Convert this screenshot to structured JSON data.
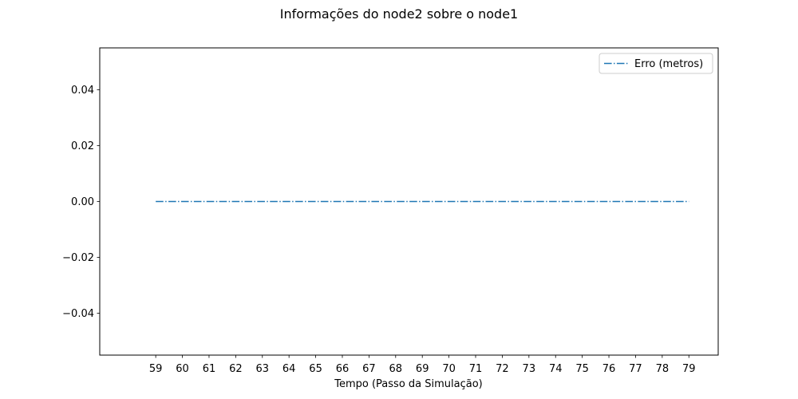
{
  "chart_data": {
    "type": "line",
    "title": "Informações do node2 sobre o node1",
    "xlabel": "Tempo (Passo da Simulação)",
    "ylabel": "",
    "x": [
      59,
      60,
      61,
      62,
      63,
      64,
      65,
      66,
      67,
      68,
      69,
      70,
      71,
      72,
      73,
      74,
      75,
      76,
      77,
      78,
      79
    ],
    "xlim": [
      56.9,
      80.1
    ],
    "ylim": [
      -0.055,
      0.055
    ],
    "x_ticks": [
      59,
      60,
      61,
      62,
      63,
      64,
      65,
      66,
      67,
      68,
      69,
      70,
      71,
      72,
      73,
      74,
      75,
      76,
      77,
      78,
      79
    ],
    "y_ticks": [
      -0.04,
      -0.02,
      0.0,
      0.02,
      0.04
    ],
    "y_tick_labels": [
      "−0.04",
      "−0.02",
      "0.00",
      "0.02",
      "0.04"
    ],
    "grid": false,
    "legend_position": "top-right",
    "series": [
      {
        "name": "Erro (metros)",
        "color": "#1f77b4",
        "line_style": "dashdot",
        "values": [
          0,
          0,
          0,
          0,
          0,
          0,
          0,
          0,
          0,
          0,
          0,
          0,
          0,
          0,
          0,
          0,
          0,
          0,
          0,
          0,
          0
        ]
      }
    ]
  }
}
